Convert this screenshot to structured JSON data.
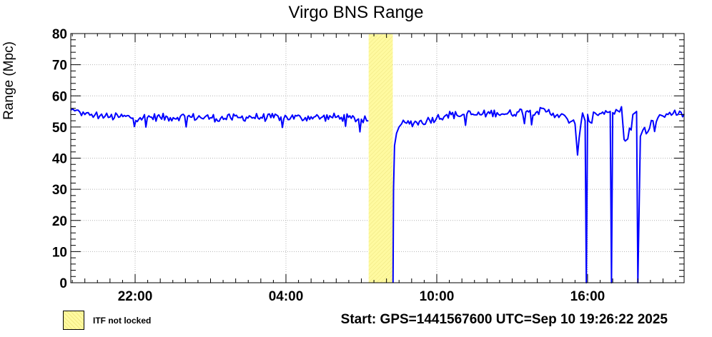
{
  "chart_data": {
    "type": "line",
    "title": "Virgo BNS Range",
    "ylabel": "Range (Mpc)",
    "xlabel": "",
    "ylim": [
      0,
      80
    ],
    "yticks": [
      0,
      10,
      20,
      30,
      40,
      50,
      60,
      70,
      80
    ],
    "x_unit": "UTC hours",
    "xlim": [
      19.44,
      43.84
    ],
    "xticks": [
      {
        "value": 22,
        "label": "22:00"
      },
      {
        "value": 28,
        "label": "04:00"
      },
      {
        "value": 34,
        "label": "10:00"
      },
      {
        "value": 40,
        "label": "16:00"
      }
    ],
    "grid": true,
    "series": [
      {
        "name": "",
        "color": "#0000ff",
        "x": [
          19.44,
          19.6,
          19.8,
          20.0,
          20.2,
          20.4,
          20.6,
          20.8,
          21.0,
          21.4,
          21.8,
          22.2,
          22.6,
          23.0,
          23.4,
          23.8,
          24.2,
          24.6,
          25.0,
          25.4,
          25.8,
          26.2,
          26.6,
          27.0,
          27.4,
          27.8,
          28.2,
          28.6,
          29.0,
          29.4,
          29.8,
          30.2,
          30.6,
          31.0,
          31.28,
          31.29,
          31.3,
          31.8,
          32.25,
          32.26,
          32.28,
          32.32,
          32.4,
          32.5,
          32.6,
          32.8,
          33.2,
          33.6,
          34.0,
          34.4,
          34.8,
          35.2,
          35.6,
          36.0,
          36.4,
          36.8,
          37.2,
          37.6,
          38.0,
          38.4,
          38.8,
          39.2,
          39.5,
          39.6,
          39.8,
          39.9,
          39.95,
          40.0,
          40.05,
          40.1,
          40.3,
          40.6,
          40.9,
          40.95,
          41.0,
          41.2,
          41.35,
          41.45,
          41.5,
          41.6,
          41.8,
          41.95,
          42.0,
          42.1,
          42.2,
          42.4,
          42.6,
          42.8,
          43.0,
          43.2,
          43.4,
          43.6,
          43.84
        ],
        "values": [
          55.5,
          55.2,
          54.8,
          54.0,
          53.8,
          53.9,
          53.6,
          53.4,
          53.2,
          53.3,
          53.1,
          53.0,
          53.2,
          53.1,
          53.0,
          53.4,
          53.2,
          53.1,
          53.0,
          52.8,
          52.9,
          53.0,
          53.3,
          53.1,
          53.0,
          53.2,
          53.1,
          52.9,
          53.3,
          53.0,
          53.2,
          53.1,
          52.8,
          52.5,
          52.0,
          null,
          null,
          null,
          null,
          0,
          30,
          44,
          48,
          50,
          51,
          51.2,
          51.5,
          52.0,
          53.0,
          54.0,
          53.8,
          54.2,
          53.9,
          54.3,
          54.6,
          54.2,
          54.8,
          55.2,
          55.0,
          55.0,
          54.0,
          52.5,
          51.0,
          41.0,
          54.5,
          52.0,
          0,
          54.0,
          52.0,
          51.5,
          54.5,
          54.8,
          55.0,
          0,
          54.6,
          55.2,
          56.5,
          46.0,
          45.5,
          46.2,
          54.0,
          55.0,
          0,
          47.0,
          49.0,
          48.5,
          52.0,
          53.0,
          53.5,
          54.0,
          54.3,
          54.0,
          54.2
        ]
      }
    ],
    "shaded_regions": [
      {
        "label": "ITF not locked",
        "x_start": 31.29,
        "x_end": 32.25,
        "color": "#fffaa0"
      }
    ],
    "legend": {
      "placement": "bottom-left",
      "entries": [
        {
          "label": "ITF not locked"
        }
      ]
    },
    "annotation": "Start: GPS=1441567600 UTC=Sep 10 19:26:22 2025"
  }
}
